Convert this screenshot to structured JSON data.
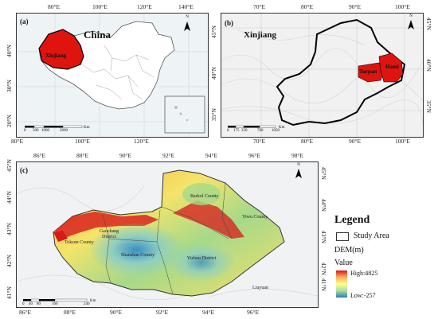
{
  "panel_a": {
    "letter": "(a)",
    "title": "China",
    "highlight_label": "Xinjiang",
    "top_ticks": [
      "80°E",
      "100°E",
      "120°E",
      "140°E"
    ],
    "bottom_ticks": [
      "80°E",
      "100°E",
      "120°E"
    ],
    "left_ticks": [
      "40°N",
      "30°N",
      "20°N"
    ],
    "scale_labels": [
      "0",
      "500",
      "1000",
      "2000"
    ],
    "scale_unit": "Km",
    "north": "N"
  },
  "panel_b": {
    "letter": "(b)",
    "title": "Xinjiang",
    "labels": [
      "Turpan",
      "Hami"
    ],
    "top_ticks": [
      "70°E",
      "80°E",
      "90°E",
      "100°E"
    ],
    "bottom_ticks": [
      "70°E",
      "80°E",
      "90°E",
      "100°E"
    ],
    "left_ticks": [
      "45°N",
      "40°N",
      "35°N"
    ],
    "right_ticks": [
      "45°N",
      "40°N",
      "35°N"
    ],
    "scale_labels": [
      "0",
      "175",
      "350",
      "700",
      "1050"
    ],
    "scale_unit": "Km",
    "north": "N"
  },
  "panel_c": {
    "letter": "(c)",
    "top_ticks": [
      "86°E",
      "88°E",
      "90°E",
      "92°E",
      "94°E",
      "96°E",
      "98°E"
    ],
    "bottom_ticks": [
      "86°E",
      "88°E",
      "90°E",
      "92°E",
      "94°E",
      "96°E"
    ],
    "left_ticks": [
      "45°N",
      "44°N",
      "43°N",
      "42°N",
      "41°N"
    ],
    "right_ticks": [
      "45°N",
      "44°N",
      "43°N",
      "42°N",
      "41°N"
    ],
    "counties": [
      "Barkol County",
      "Yiwu County",
      "Gaochang District",
      "Toksun County",
      "Shanshan County",
      "Yizhou District",
      "Liuyuan"
    ],
    "scale_labels": [
      "0",
      "40",
      "80",
      "160",
      "240"
    ],
    "scale_unit": "Km",
    "north": "N"
  },
  "legend": {
    "title": "Legend",
    "study_area": "Study Area",
    "dem_label": "DEM(m)",
    "value_label": "Value",
    "high_label": "High:4825",
    "low_label": "Low:-257"
  },
  "colors": {
    "highlight": "#e0140e",
    "dem_high": "#d7191c",
    "dem_mid": "#ffff8c",
    "dem_low": "#2c7bb6"
  }
}
